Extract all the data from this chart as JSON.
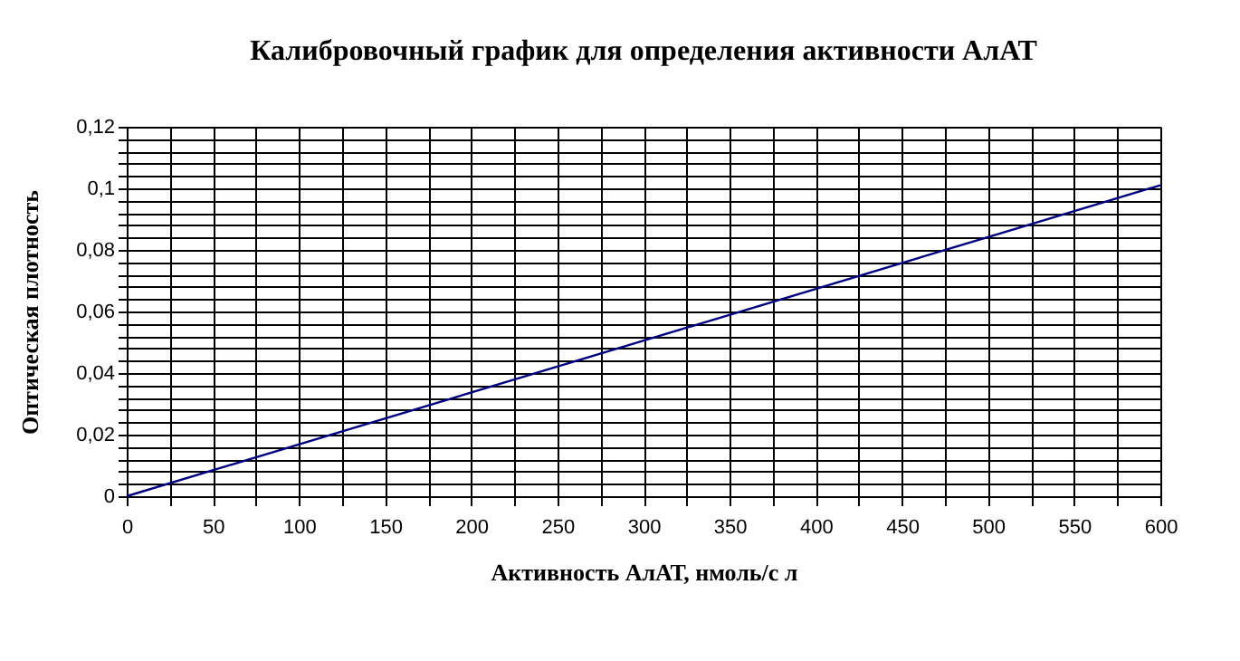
{
  "chart_data": {
    "type": "line",
    "title": "Калибровочный график для определения активности АлАТ",
    "xlabel": "Активность АлАТ, нмоль/с л",
    "ylabel": "Оптическая плотность",
    "x": [
      0,
      600
    ],
    "series": [
      {
        "color": "#000080",
        "values": [
          0,
          0.101
        ]
      }
    ],
    "xlim": [
      0,
      600
    ],
    "xticks": [
      0,
      {
        "value": 25,
        "label": null
      },
      50,
      {
        "value": 75,
        "label": null
      },
      100,
      {
        "value": 125,
        "label": null
      },
      150,
      {
        "value": 175,
        "label": null
      },
      200,
      {
        "value": 225,
        "label": null
      },
      250,
      {
        "value": 275,
        "label": null
      },
      300,
      {
        "value": 325,
        "label": null
      },
      350,
      {
        "value": 375,
        "label": null
      },
      400,
      {
        "value": 425,
        "label": null
      },
      450,
      {
        "value": 475,
        "label": null
      },
      500,
      {
        "value": 525,
        "label": null
      },
      550,
      {
        "value": 575,
        "label": null
      },
      600
    ],
    "ylim": [
      0,
      0.12
    ],
    "yticks": [
      0,
      {
        "value": 0.004,
        "label": null
      },
      {
        "value": 0.008,
        "label": null
      },
      {
        "value": 0.012,
        "label": null
      },
      {
        "value": 0.016,
        "label": null
      },
      {
        "value": 0.02,
        "label": "0,02"
      },
      {
        "value": 0.024,
        "label": null
      },
      {
        "value": 0.028,
        "label": null
      },
      {
        "value": 0.032,
        "label": null
      },
      {
        "value": 0.036,
        "label": null
      },
      {
        "value": 0.04,
        "label": "0,04"
      },
      {
        "value": 0.044,
        "label": null
      },
      {
        "value": 0.048,
        "label": null
      },
      {
        "value": 0.052,
        "label": null
      },
      {
        "value": 0.056,
        "label": null
      },
      {
        "value": 0.06,
        "label": "0,06"
      },
      {
        "value": 0.064,
        "label": null
      },
      {
        "value": 0.068,
        "label": null
      },
      {
        "value": 0.072,
        "label": null
      },
      {
        "value": 0.076,
        "label": null
      },
      {
        "value": 0.08,
        "label": "0,08"
      },
      {
        "value": 0.084,
        "label": null
      },
      {
        "value": 0.088,
        "label": null
      },
      {
        "value": 0.092,
        "label": null
      },
      {
        "value": 0.096,
        "label": null
      },
      {
        "value": 0.1,
        "label": "0,1"
      },
      {
        "value": 0.104,
        "label": null
      },
      {
        "value": 0.108,
        "label": null
      },
      {
        "value": 0.112,
        "label": null
      },
      {
        "value": 0.116,
        "label": null
      },
      {
        "value": 0.12,
        "label": "0,12"
      }
    ],
    "grid": true,
    "marker": "none",
    "line_style": "solid"
  }
}
